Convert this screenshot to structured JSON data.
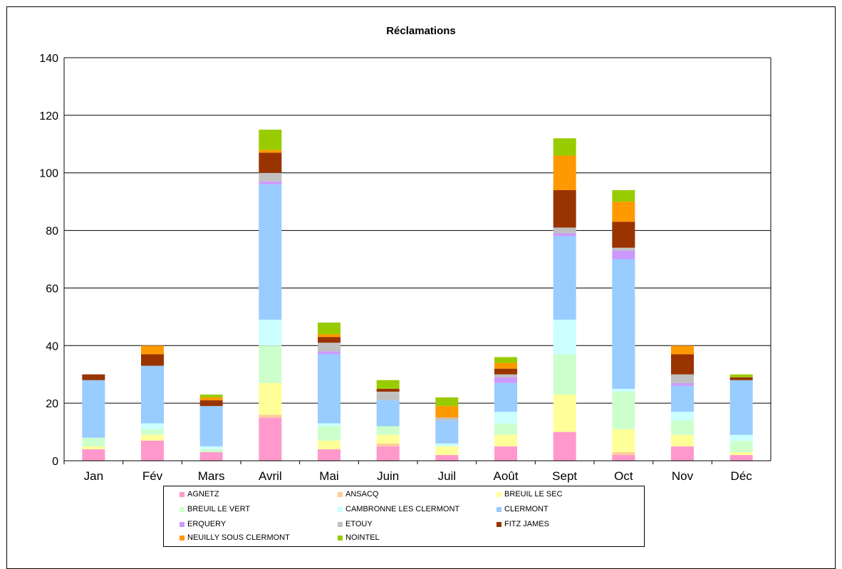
{
  "chart_data": {
    "type": "bar",
    "stacked": true,
    "title": "Réclamations",
    "xlabel": "",
    "ylabel": "",
    "ylim": [
      0,
      140
    ],
    "yticks": [
      0,
      20,
      40,
      60,
      80,
      100,
      120,
      140
    ],
    "grid": true,
    "legend_position": "bottom",
    "categories": [
      "Jan",
      "Fév",
      "Mars",
      "Avril",
      "Mai",
      "Juin",
      "Juil",
      "Août",
      "Sept",
      "Oct",
      "Nov",
      "Déc"
    ],
    "series": [
      {
        "name": "AGNETZ",
        "color": "#ff99cc",
        "values": [
          4,
          7,
          3,
          15,
          4,
          5,
          2,
          5,
          10,
          2,
          5,
          2
        ]
      },
      {
        "name": "ANSACQ",
        "color": "#ffcc99",
        "values": [
          0,
          0,
          0,
          1,
          0,
          1,
          0,
          0,
          0,
          1,
          0,
          0
        ]
      },
      {
        "name": "BREUIL LE SEC",
        "color": "#ffff99",
        "values": [
          1,
          2,
          0,
          11,
          3,
          3,
          3,
          4,
          13,
          8,
          4,
          1
        ]
      },
      {
        "name": "BREUIL LE VERT",
        "color": "#ccffcc",
        "values": [
          3,
          2,
          1,
          13,
          5,
          3,
          0,
          4,
          14,
          13,
          5,
          4
        ]
      },
      {
        "name": "CAMBRONNE LES CLERMONT",
        "color": "#ccffff",
        "values": [
          0,
          2,
          1,
          9,
          1,
          0,
          1,
          4,
          12,
          1,
          3,
          2
        ]
      },
      {
        "name": "CLERMONT",
        "color": "#99ccff",
        "values": [
          20,
          20,
          14,
          47,
          24,
          9,
          8,
          10,
          29,
          45,
          9,
          19
        ]
      },
      {
        "name": "ERQUERY",
        "color": "#cc99ff",
        "values": [
          0,
          0,
          0,
          1,
          1,
          0,
          0,
          2,
          1,
          3,
          1,
          0
        ]
      },
      {
        "name": "ETOUY",
        "color": "#c0c0c0",
        "values": [
          0,
          0,
          0,
          3,
          3,
          3,
          1,
          1,
          2,
          1,
          3,
          0
        ]
      },
      {
        "name": "FITZ JAMES",
        "color": "#993300",
        "values": [
          2,
          4,
          2,
          7,
          2,
          1,
          0,
          2,
          13,
          9,
          7,
          1
        ]
      },
      {
        "name": "NEUILLY SOUS CLERMONT",
        "color": "#ff9900",
        "values": [
          0,
          3,
          1,
          1,
          1,
          0,
          4,
          2,
          12,
          7,
          3,
          0
        ]
      },
      {
        "name": "NOINTEL",
        "color": "#99cc00",
        "values": [
          0,
          0,
          1,
          7,
          4,
          3,
          3,
          2,
          6,
          4,
          0,
          1
        ]
      }
    ]
  }
}
